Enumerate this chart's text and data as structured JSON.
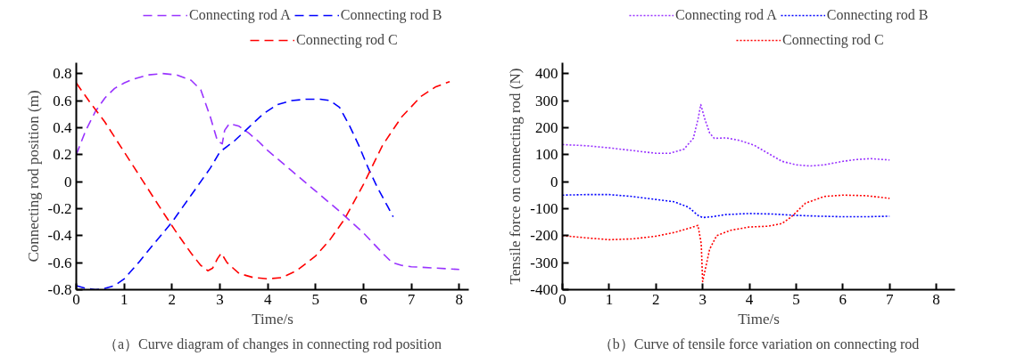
{
  "chart_data": [
    {
      "type": "line",
      "xlabel": "Time/s",
      "ylabel": "Connecting rod position (m)",
      "xlim": [
        0,
        8.2
      ],
      "ylim": [
        -0.8,
        0.88
      ],
      "xticks": [
        0,
        1,
        2,
        3,
        4,
        5,
        6,
        7,
        8
      ],
      "yticks": [
        -0.8,
        -0.6,
        -0.4,
        -0.2,
        0,
        0.2,
        0.4,
        0.6,
        0.8
      ],
      "line_style": "dashed",
      "grid": false,
      "legend": "top",
      "annotations": [
        "（a）Curve diagram of changes in connecting rod position"
      ],
      "series": [
        {
          "name": "Connecting rod A",
          "color": "#9933ff",
          "x": [
            0,
            0.2,
            0.4,
            0.6,
            0.8,
            1,
            1.2,
            1.5,
            1.8,
            2.1,
            2.4,
            2.6,
            2.8,
            2.95,
            3.05,
            3.1,
            3.2,
            3.4,
            3.6,
            3.8,
            4,
            4.5,
            5,
            5.5,
            6,
            6.4,
            6.6,
            6.8,
            7,
            7.5,
            8
          ],
          "values": [
            0.2,
            0.38,
            0.52,
            0.62,
            0.69,
            0.73,
            0.76,
            0.79,
            0.8,
            0.79,
            0.75,
            0.68,
            0.48,
            0.3,
            0.28,
            0.38,
            0.43,
            0.41,
            0.36,
            0.3,
            0.23,
            0.08,
            -0.07,
            -0.22,
            -0.38,
            -0.53,
            -0.6,
            -0.62,
            -0.63,
            -0.64,
            -0.65
          ]
        },
        {
          "name": "Connecting rod B",
          "color": "#0000ff",
          "x": [
            0,
            0.2,
            0.4,
            0.6,
            0.8,
            1,
            1.3,
            1.6,
            2,
            2.4,
            2.8,
            3,
            3.3,
            3.6,
            3.9,
            4.2,
            4.5,
            4.8,
            5.1,
            5.3,
            5.5,
            5.7,
            5.9,
            6.1,
            6.3,
            6.5,
            6.62
          ],
          "values": [
            -0.77,
            -0.79,
            -0.8,
            -0.79,
            -0.77,
            -0.72,
            -0.6,
            -0.47,
            -0.3,
            -0.1,
            0.1,
            0.22,
            0.3,
            0.4,
            0.5,
            0.57,
            0.6,
            0.61,
            0.61,
            0.6,
            0.55,
            0.42,
            0.27,
            0.1,
            -0.05,
            -0.18,
            -0.26
          ]
        },
        {
          "name": "Connecting rod C",
          "color": "#ff0000",
          "x": [
            0,
            0.3,
            0.6,
            1,
            1.4,
            1.8,
            2.1,
            2.4,
            2.6,
            2.75,
            2.85,
            2.95,
            3.03,
            3.15,
            3.4,
            3.7,
            4,
            4.3,
            4.6,
            5,
            5.3,
            5.6,
            6,
            6.4,
            6.8,
            7.2,
            7.5,
            7.8
          ],
          "values": [
            0.73,
            0.58,
            0.44,
            0.22,
            0.0,
            -0.22,
            -0.38,
            -0.53,
            -0.62,
            -0.66,
            -0.64,
            -0.57,
            -0.53,
            -0.6,
            -0.68,
            -0.71,
            -0.72,
            -0.71,
            -0.66,
            -0.55,
            -0.43,
            -0.28,
            -0.02,
            0.27,
            0.48,
            0.63,
            0.7,
            0.74
          ]
        }
      ]
    },
    {
      "type": "line",
      "xlabel": "Time/s",
      "ylabel": "Tensile force on connecting rod (N)",
      "xlim": [
        0,
        8.4
      ],
      "ylim": [
        -400,
        440
      ],
      "xticks": [
        0,
        1,
        2,
        3,
        4,
        5,
        6,
        7,
        8
      ],
      "yticks": [
        -400,
        -300,
        -200,
        -100,
        0,
        100,
        200,
        300,
        400
      ],
      "line_style": "dotted",
      "grid": false,
      "legend": "top",
      "annotations": [
        "（b）Curve of tensile force variation on connecting rod"
      ],
      "series": [
        {
          "name": "Connecting rod A",
          "color": "#9933ff",
          "x": [
            0,
            0.5,
            1,
            1.5,
            2,
            2.3,
            2.6,
            2.8,
            2.9,
            2.96,
            3.05,
            3.15,
            3.25,
            3.5,
            3.8,
            4.1,
            4.4,
            4.7,
            5,
            5.3,
            5.6,
            6,
            6.3,
            6.6,
            7
          ],
          "values": [
            137,
            133,
            125,
            115,
            105,
            105,
            120,
            160,
            230,
            285,
            230,
            180,
            160,
            162,
            152,
            135,
            105,
            75,
            62,
            58,
            62,
            75,
            82,
            85,
            80
          ]
        },
        {
          "name": "Connecting rod B",
          "color": "#0000ff",
          "x": [
            0,
            0.5,
            1,
            1.5,
            2,
            2.4,
            2.7,
            2.9,
            3,
            3.2,
            3.5,
            4,
            4.5,
            5,
            5.5,
            6,
            6.5,
            7
          ],
          "values": [
            -50,
            -48,
            -48,
            -55,
            -66,
            -75,
            -95,
            -125,
            -133,
            -130,
            -122,
            -118,
            -120,
            -125,
            -128,
            -130,
            -130,
            -128
          ]
        },
        {
          "name": "Connecting rod C",
          "color": "#ff0000",
          "x": [
            0,
            0.5,
            1,
            1.5,
            2,
            2.4,
            2.7,
            2.9,
            2.97,
            3.0,
            3.05,
            3.15,
            3.3,
            3.6,
            4,
            4.4,
            4.7,
            4.9,
            5.2,
            5.6,
            6,
            6.5,
            7
          ],
          "values": [
            -200,
            -208,
            -215,
            -212,
            -202,
            -188,
            -173,
            -162,
            -230,
            -370,
            -330,
            -250,
            -200,
            -180,
            -168,
            -165,
            -155,
            -130,
            -80,
            -55,
            -50,
            -52,
            -62
          ]
        }
      ]
    }
  ]
}
